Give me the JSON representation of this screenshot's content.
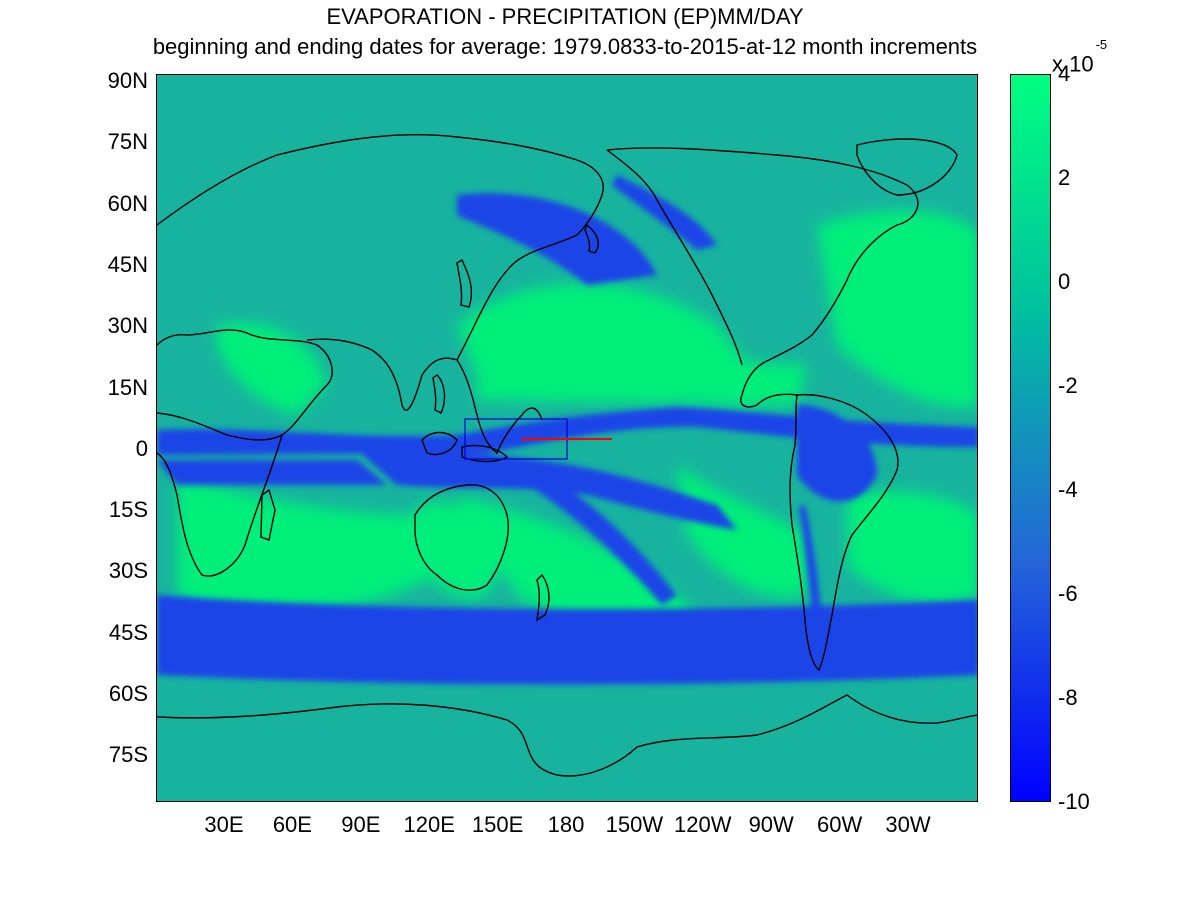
{
  "title": "EVAPORATION - PRECIPITATION (EP)MM/DAY",
  "subtitle": "beginning and ending dates for average:  1979.0833-to-2015-at-12 month increments",
  "lat_labels": [
    "90N",
    "75N",
    "60N",
    "45N",
    "30N",
    "15N",
    "0",
    "15S",
    "30S",
    "45S",
    "60S",
    "75S"
  ],
  "lon_labels": [
    "30E",
    "60E",
    "90E",
    "120E",
    "150E",
    "180",
    "150W",
    "120W",
    "90W",
    "60W",
    "30W"
  ],
  "colorbar": {
    "labels": [
      "4",
      "2",
      "0",
      "-2",
      "-4",
      "-6",
      "-8",
      "-10"
    ],
    "exponent_text": "x 10",
    "exponent_power": "-5",
    "max": 4,
    "min": -10,
    "colors": [
      "#00ff80",
      "#00bfa0",
      "#2466d8",
      "#0000ff"
    ]
  },
  "map_colors": {
    "background": "#17b39e",
    "high": "#00ee7a",
    "low": "#1b44e8",
    "coast": "#000000",
    "box": "#0000cc",
    "line": "#ff0000"
  }
}
